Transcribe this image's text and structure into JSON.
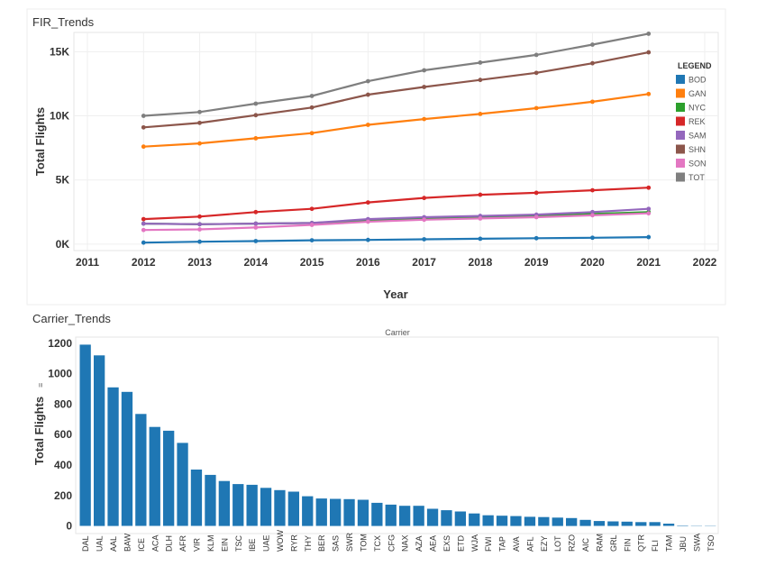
{
  "chart_data": [
    {
      "type": "line",
      "title": "FIR_Trends",
      "xlabel": "Year",
      "ylabel": "Total Flights",
      "x_ticks": [
        "2011",
        "2012",
        "2013",
        "2014",
        "2015",
        "2016",
        "2017",
        "2018",
        "2019",
        "2020",
        "2021",
        "2022"
      ],
      "xlim": [
        2011,
        2022
      ],
      "y_ticks": [
        "0K",
        "5K",
        "10K",
        "15K"
      ],
      "y_tick_values": [
        0,
        5000,
        10000,
        15000
      ],
      "ylim": [
        -500,
        16500
      ],
      "grid": true,
      "legend_title": "LEGEND",
      "legend_position": "right",
      "x": [
        2012,
        2013,
        2014,
        2015,
        2016,
        2017,
        2018,
        2019,
        2020,
        2021
      ],
      "series": [
        {
          "name": "BOD",
          "color": "#1f77b4",
          "values": [
            120,
            190,
            240,
            300,
            330,
            380,
            420,
            460,
            500,
            550
          ]
        },
        {
          "name": "GAN",
          "color": "#ff7f0e",
          "values": [
            7600,
            7850,
            8250,
            8650,
            9300,
            9750,
            10150,
            10600,
            11100,
            11700
          ]
        },
        {
          "name": "NYC",
          "color": "#2ca02c",
          "values": [
            1600,
            1550,
            1600,
            1650,
            1850,
            2000,
            2100,
            2200,
            2350,
            2500
          ]
        },
        {
          "name": "REK",
          "color": "#d62728",
          "values": [
            1950,
            2150,
            2500,
            2750,
            3250,
            3600,
            3850,
            4000,
            4200,
            4400
          ]
        },
        {
          "name": "SAM",
          "color": "#9467bd",
          "values": [
            1600,
            1550,
            1600,
            1650,
            1950,
            2100,
            2200,
            2300,
            2500,
            2750
          ]
        },
        {
          "name": "SHN",
          "color": "#8c564b",
          "values": [
            9100,
            9450,
            10050,
            10650,
            11650,
            12250,
            12800,
            13350,
            14100,
            14950
          ]
        },
        {
          "name": "SON",
          "color": "#e377c2",
          "values": [
            1100,
            1150,
            1300,
            1500,
            1750,
            1900,
            2000,
            2100,
            2250,
            2400
          ]
        },
        {
          "name": "TOT",
          "color": "#7f7f7f",
          "values": [
            10000,
            10300,
            10950,
            11550,
            12700,
            13550,
            14150,
            14750,
            15550,
            16400
          ]
        }
      ]
    },
    {
      "type": "bar",
      "title": "Carrier_Trends",
      "subtitle": "Carrier",
      "ylabel": "Total Flights",
      "ylabel_marker": "≡",
      "y_ticks": [
        "0",
        "200",
        "400",
        "600",
        "800",
        "1000",
        "1200"
      ],
      "y_tick_values": [
        0,
        200,
        400,
        600,
        800,
        1000,
        1200
      ],
      "ylim": [
        -50,
        1240
      ],
      "grid": false,
      "color": "#1f77b4",
      "categories": [
        "DAL",
        "UAL",
        "AAL",
        "BAW",
        "ICE",
        "ACA",
        "DLH",
        "AFR",
        "VIR",
        "KLM",
        "EIN",
        "TSC",
        "IBE",
        "UAE",
        "WOW",
        "RYR",
        "THY",
        "BER",
        "SAS",
        "SWR",
        "TOM",
        "TCX",
        "CFG",
        "NAX",
        "AZA",
        "AEA",
        "EXS",
        "ETD",
        "WJA",
        "FWI",
        "TAP",
        "AVA",
        "AFL",
        "EZY",
        "LOT",
        "RZO",
        "AIC",
        "RAM",
        "GRL",
        "FIN",
        "QTR",
        "FLI",
        "TAM",
        "JBU",
        "SWA",
        "TSO"
      ],
      "values": [
        1190,
        1120,
        910,
        880,
        735,
        650,
        625,
        545,
        370,
        335,
        295,
        275,
        270,
        250,
        235,
        225,
        195,
        180,
        178,
        176,
        172,
        152,
        140,
        132,
        132,
        113,
        103,
        95,
        82,
        70,
        67,
        65,
        60,
        58,
        55,
        52,
        40,
        32,
        30,
        28,
        25,
        25,
        15,
        3,
        2,
        2
      ]
    }
  ]
}
